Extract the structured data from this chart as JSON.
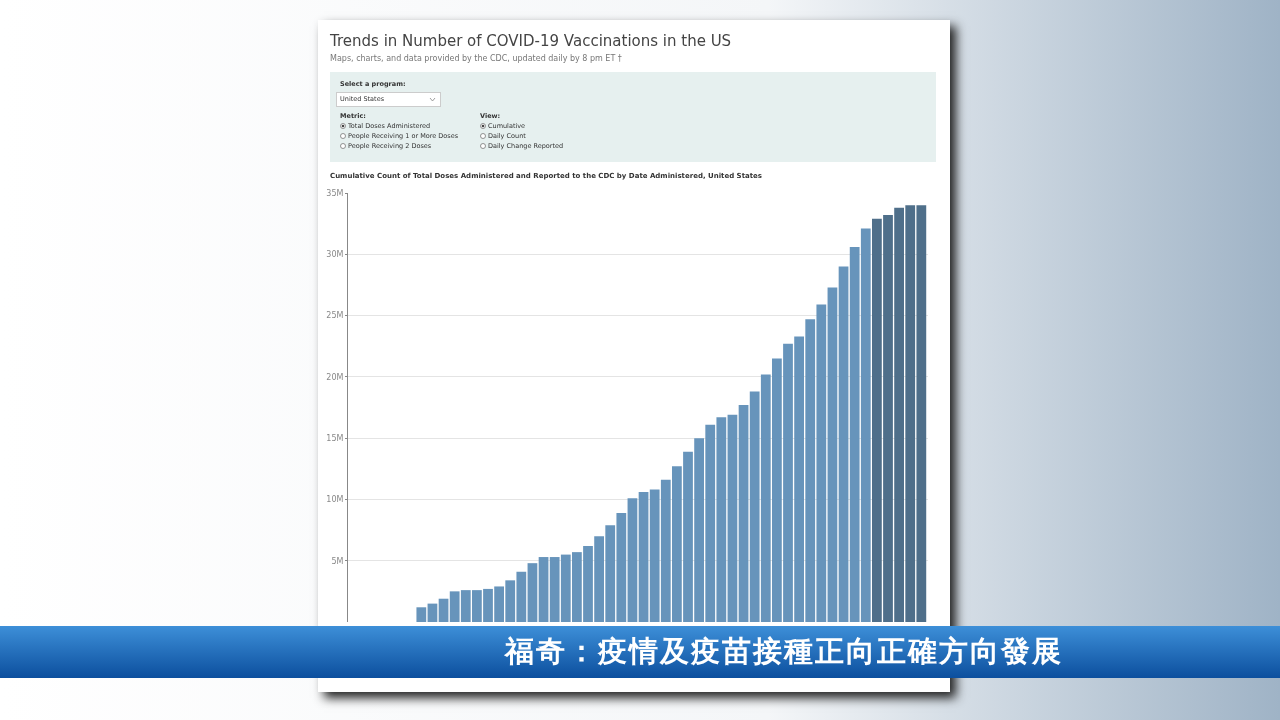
{
  "chart_data": {
    "type": "bar",
    "title": "Trends in Number of COVID-19 Vaccinations in the US",
    "subtitle": "Maps, charts, and data provided by the CDC, updated daily by 8 pm ET †",
    "annotations": [
      "Cumulative Count of Total Doses Administered and Reported to the CDC by Date Administered, United States",
      "Select a program:",
      "United States",
      "Metric:",
      "Total Doses Administered",
      "People Receiving 1 or More Doses",
      "People Receiving 2 Doses",
      "View:",
      "Cumulative",
      "Daily Count",
      "Daily Change Reported",
      "福奇：疫情及疫苗接種正向正確方向發展"
    ],
    "categories": [
      null,
      null,
      null,
      null,
      null,
      null,
      null,
      null,
      null,
      null,
      null,
      null,
      null,
      null,
      null,
      null,
      null,
      null,
      null,
      null,
      null,
      null,
      null,
      null,
      null,
      null,
      null,
      null,
      null,
      null,
      null,
      null,
      null,
      null,
      null,
      null,
      null,
      null,
      null,
      null,
      null,
      null,
      null,
      null,
      null,
      null,
      null,
      null,
      null,
      null,
      null,
      null
    ],
    "values": [
      null,
      null,
      null,
      null,
      null,
      null,
      1.2,
      1.5,
      1.9,
      2.5,
      2.6,
      2.6,
      2.7,
      2.9,
      3.4,
      4.1,
      4.8,
      5.3,
      5.3,
      5.5,
      5.7,
      6.2,
      7.0,
      7.9,
      8.9,
      10.1,
      10.6,
      10.8,
      11.6,
      12.7,
      13.9,
      15.0,
      16.1,
      16.7,
      16.9,
      17.7,
      18.8,
      20.2,
      21.5,
      22.7,
      23.3,
      24.7,
      25.9,
      27.3,
      29.0,
      30.6,
      32.1,
      32.9,
      33.2,
      33.8,
      34.0,
      34.0
    ],
    "colors": [
      "#6794bb",
      "#6794bb",
      "#6794bb",
      "#6794bb",
      "#6794bb",
      "#6794bb",
      "#6794bb",
      "#6794bb",
      "#6794bb",
      "#6794bb",
      "#6794bb",
      "#6794bb",
      "#6794bb",
      "#6794bb",
      "#6794bb",
      "#6794bb",
      "#6794bb",
      "#6794bb",
      "#6794bb",
      "#6794bb",
      "#6794bb",
      "#6794bb",
      "#6794bb",
      "#6794bb",
      "#6794bb",
      "#6794bb",
      "#6794bb",
      "#6794bb",
      "#6794bb",
      "#6794bb",
      "#6794bb",
      "#6794bb",
      "#6794bb",
      "#6794bb",
      "#6794bb",
      "#6794bb",
      "#6794bb",
      "#6794bb",
      "#6794bb",
      "#6794bb",
      "#6794bb",
      "#6794bb",
      "#6794bb",
      "#6794bb",
      "#6794bb",
      "#6794bb",
      "#6794bb",
      "#4f6f8a",
      "#4f6f8a",
      "#4f6f8a",
      "#4f6f8a",
      "#4f6f8a"
    ],
    "ylim": [
      0,
      35
    ],
    "yticks": [
      {
        "value": 5,
        "label": "5M"
      },
      {
        "value": 10,
        "label": "10M"
      },
      {
        "value": 15,
        "label": "15M"
      },
      {
        "value": 20,
        "label": "20M"
      },
      {
        "value": 25,
        "label": "25M"
      },
      {
        "value": 30,
        "label": "30M"
      },
      {
        "value": 35,
        "label": "35M"
      }
    ],
    "grid": "y",
    "tick_labels": "y"
  }
}
